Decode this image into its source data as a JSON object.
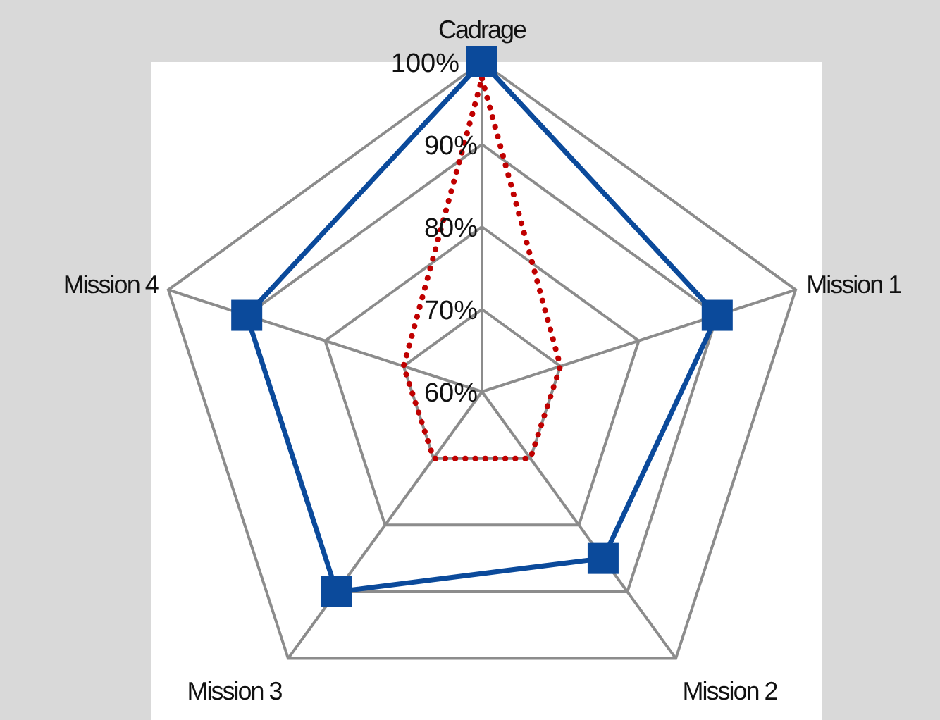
{
  "chart_data": {
    "type": "radar",
    "categories": [
      "Cadrage",
      "Mission 1",
      "Mission 2",
      "Mission 3",
      "Mission 4"
    ],
    "series": [
      {
        "color": "#0b4a9b",
        "values": [
          100,
          90,
          85,
          90,
          90
        ],
        "marker": "square",
        "line_style": "solid"
      },
      {
        "color": "#c00000",
        "values": [
          98,
          70,
          70,
          70,
          70
        ],
        "marker": "none",
        "line_style": "dotted"
      }
    ],
    "ylim": [
      60,
      100
    ],
    "yticks": [
      {
        "value": 60,
        "label": "60%"
      },
      {
        "value": 70,
        "label": "70%"
      },
      {
        "value": 80,
        "label": "80%"
      },
      {
        "value": 90,
        "label": "90%"
      },
      {
        "value": 100,
        "label": "100%"
      }
    ],
    "grid": true,
    "legend": false
  }
}
